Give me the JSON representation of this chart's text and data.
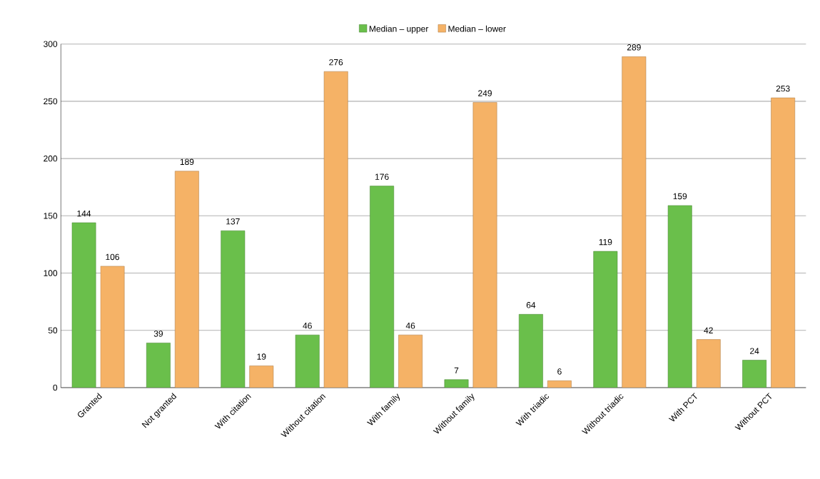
{
  "chart_data": {
    "type": "bar",
    "categories": [
      "Granted",
      "Not granted",
      "With citation",
      "Without citation",
      "With family",
      "Without family",
      "With triadic",
      "Without triadic",
      "With PCT",
      "Without PCT"
    ],
    "series": [
      {
        "name": "Median – upper",
        "color": "#6abf4b",
        "values": [
          144,
          39,
          137,
          46,
          176,
          7,
          64,
          119,
          159,
          24
        ]
      },
      {
        "name": "Median – lower",
        "color": "#f5b266",
        "values": [
          106,
          189,
          19,
          276,
          46,
          249,
          6,
          289,
          42,
          253
        ]
      }
    ],
    "ylim": [
      0,
      300
    ],
    "yticks": [
      0,
      50,
      100,
      150,
      200,
      250,
      300
    ],
    "grid": "y",
    "legend": "top",
    "data_labels": true
  }
}
